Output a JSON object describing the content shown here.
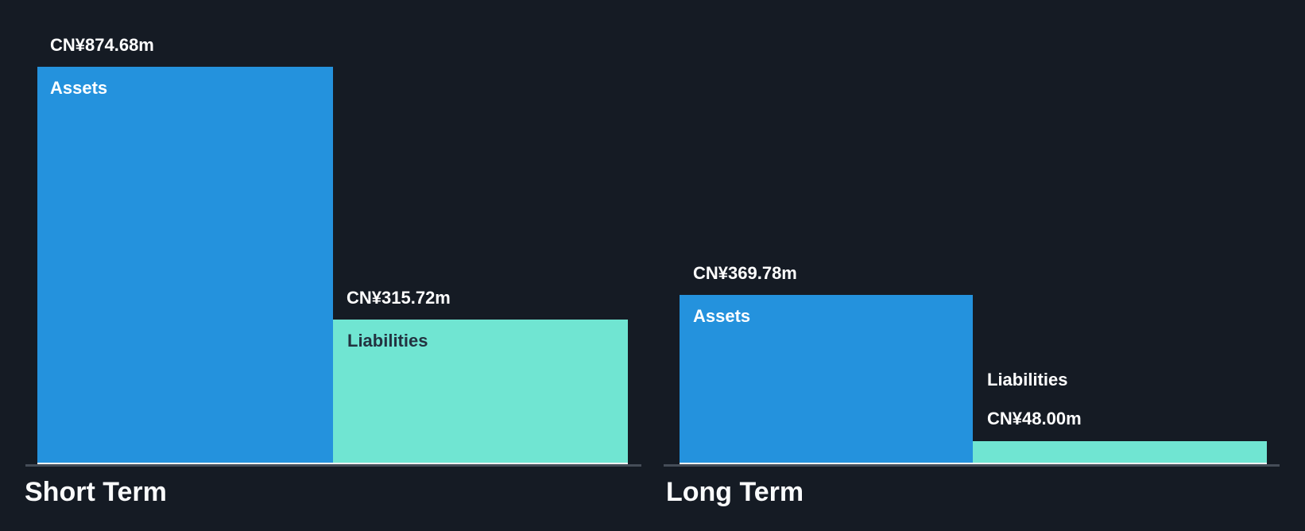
{
  "page": {
    "background": "#151B24"
  },
  "colors": {
    "assets_bar": "#2492DD",
    "liabilities_bar": "#70E5D2",
    "axis_line": "#454D58",
    "bar_underline": "#EFF1F2",
    "label_light": "#FFFFFF",
    "label_dark": "#233240"
  },
  "chart_data": {
    "type": "bar",
    "currency": "CN¥",
    "value_suffix": "m",
    "max_value": 874.68,
    "legend": "inline-labels",
    "grid": false,
    "categories": [
      "Short Term",
      "Long Term"
    ],
    "groups": [
      {
        "label": "Short Term",
        "bars": [
          {
            "name": "Assets",
            "series": "assets",
            "value": 874.68,
            "value_display": "CN¥874.68m"
          },
          {
            "name": "Liabilities",
            "series": "liabilities",
            "value": 315.72,
            "value_display": "CN¥315.72m"
          }
        ]
      },
      {
        "label": "Long Term",
        "bars": [
          {
            "name": "Assets",
            "series": "assets",
            "value": 369.78,
            "value_display": "CN¥369.78m"
          },
          {
            "name": "Liabilities",
            "series": "liabilities",
            "value": 48.0,
            "value_display": "CN¥48.00m"
          }
        ]
      }
    ]
  }
}
